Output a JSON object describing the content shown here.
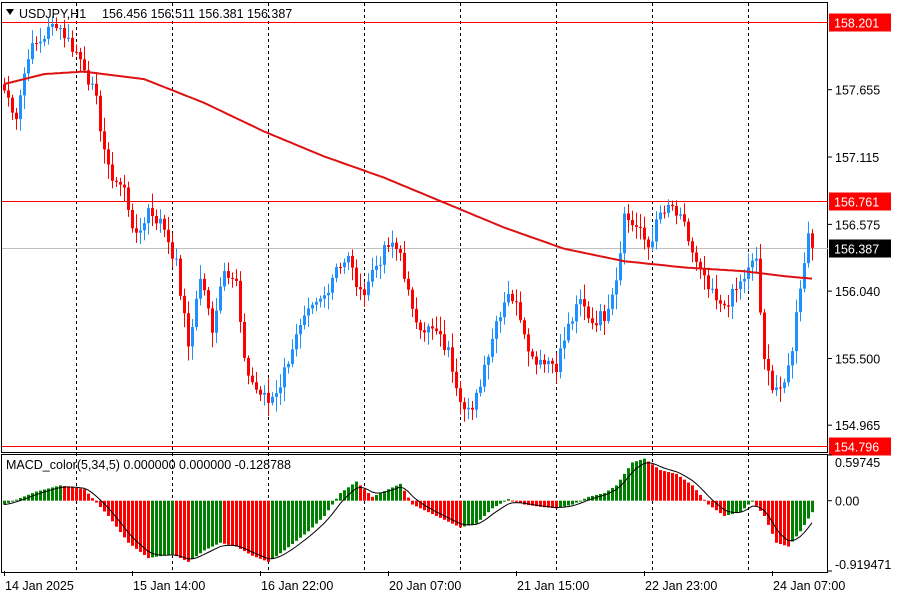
{
  "header": {
    "symbol_label": "USDJPY,H1",
    "ohlc_label": "156.456 156.511 156.381 156.387"
  },
  "macd_header": {
    "label": "MACD_color(5,34,5) 0.000000 0.000000 -0.128788"
  },
  "colors": {
    "bull": "#1e90ff",
    "bear": "#ff0000",
    "ma": "#dd1111",
    "level_line": "#ff0000",
    "current_line": "#c0c0c0",
    "hist_pos_up": "#008000",
    "hist_pos_down": "#ff0000",
    "macd_signal": "#000000"
  },
  "chart_data": [
    {
      "type": "candlestick",
      "symbol": "USDJPY",
      "timeframe": "H1",
      "ylim": [
        154.75,
        158.35
      ],
      "y_ticks": [
        "157.655",
        "157.115",
        "156.575",
        "156.040",
        "155.500",
        "154.965"
      ],
      "levels": [
        {
          "label": "158.201",
          "value": 158.201
        },
        {
          "label": "156.761",
          "value": 156.761
        },
        {
          "label": "154.796",
          "value": 154.796
        }
      ],
      "current_price": {
        "label": "156.387",
        "value": 156.387
      },
      "x_labels": [
        "14 Jan 2025",
        "15 Jan 14:00",
        "16 Jan 22:00",
        "20 Jan 07:00",
        "21 Jan 15:00",
        "22 Jan 23:00",
        "24 Jan 07:00"
      ],
      "x_label_candle_index": [
        0,
        32,
        64,
        96,
        128,
        160,
        192
      ],
      "session_separator_candle_index": [
        18,
        42,
        66,
        90,
        114,
        138,
        162,
        186
      ],
      "close_anchors": [
        [
          0,
          157.65
        ],
        [
          3,
          157.45
        ],
        [
          6,
          157.95
        ],
        [
          9,
          158.05
        ],
        [
          13,
          158.2
        ],
        [
          17,
          158.0
        ],
        [
          20,
          157.85
        ],
        [
          23,
          157.55
        ],
        [
          26,
          157.0
        ],
        [
          30,
          156.85
        ],
        [
          33,
          156.45
        ],
        [
          36,
          156.7
        ],
        [
          40,
          156.55
        ],
        [
          43,
          156.25
        ],
        [
          46,
          155.6
        ],
        [
          49,
          156.15
        ],
        [
          52,
          155.75
        ],
        [
          55,
          156.25
        ],
        [
          58,
          156.1
        ],
        [
          60,
          155.45
        ],
        [
          63,
          155.25
        ],
        [
          66,
          155.15
        ],
        [
          69,
          155.3
        ],
        [
          72,
          155.6
        ],
        [
          76,
          155.85
        ],
        [
          80,
          156.0
        ],
        [
          83,
          156.25
        ],
        [
          86,
          156.3
        ],
        [
          89,
          156.0
        ],
        [
          92,
          156.2
        ],
        [
          96,
          156.4
        ],
        [
          99,
          156.35
        ],
        [
          102,
          155.85
        ],
        [
          105,
          155.75
        ],
        [
          108,
          155.7
        ],
        [
          111,
          155.55
        ],
        [
          114,
          155.2
        ],
        [
          117,
          155.05
        ],
        [
          120,
          155.45
        ],
        [
          123,
          155.8
        ],
        [
          126,
          156.05
        ],
        [
          129,
          155.85
        ],
        [
          132,
          155.5
        ],
        [
          135,
          155.5
        ],
        [
          138,
          155.45
        ],
        [
          141,
          155.75
        ],
        [
          144,
          155.95
        ],
        [
          147,
          155.8
        ],
        [
          150,
          155.85
        ],
        [
          153,
          156.15
        ],
        [
          155,
          156.65
        ],
        [
          158,
          156.55
        ],
        [
          161,
          156.4
        ],
        [
          164,
          156.65
        ],
        [
          167,
          156.7
        ],
        [
          170,
          156.55
        ],
        [
          173,
          156.25
        ],
        [
          176,
          156.05
        ],
        [
          179,
          155.9
        ],
        [
          182,
          156.0
        ],
        [
          185,
          156.15
        ],
        [
          188,
          156.3
        ],
        [
          190,
          155.45
        ],
        [
          192,
          155.3
        ],
        [
          195,
          155.25
        ],
        [
          197,
          155.6
        ],
        [
          199,
          156.1
        ],
        [
          201,
          156.5
        ],
        [
          202,
          156.387
        ]
      ],
      "moving_average_anchors": [
        [
          0,
          157.7
        ],
        [
          10,
          157.78
        ],
        [
          20,
          157.8
        ],
        [
          35,
          157.74
        ],
        [
          50,
          157.55
        ],
        [
          65,
          157.32
        ],
        [
          80,
          157.12
        ],
        [
          95,
          156.95
        ],
        [
          110,
          156.75
        ],
        [
          125,
          156.55
        ],
        [
          140,
          156.38
        ],
        [
          155,
          156.28
        ],
        [
          170,
          156.23
        ],
        [
          185,
          156.2
        ],
        [
          195,
          156.16
        ],
        [
          202,
          156.14
        ]
      ]
    },
    {
      "type": "bar",
      "name": "MACD_color(5,34,5)",
      "ylim": [
        -0.919471,
        0.59745
      ],
      "y_ticks": [
        "0.59745",
        "0.00",
        "-0.919471"
      ],
      "anchors": [
        [
          0,
          -0.05
        ],
        [
          8,
          0.12
        ],
        [
          14,
          0.2
        ],
        [
          20,
          0.15
        ],
        [
          26,
          -0.2
        ],
        [
          31,
          -0.55
        ],
        [
          36,
          -0.75
        ],
        [
          42,
          -0.7
        ],
        [
          46,
          -0.8
        ],
        [
          50,
          -0.65
        ],
        [
          54,
          -0.55
        ],
        [
          58,
          -0.6
        ],
        [
          62,
          -0.72
        ],
        [
          66,
          -0.8
        ],
        [
          70,
          -0.65
        ],
        [
          76,
          -0.4
        ],
        [
          80,
          -0.2
        ],
        [
          84,
          0.1
        ],
        [
          88,
          0.25
        ],
        [
          92,
          0.05
        ],
        [
          96,
          0.15
        ],
        [
          99,
          0.22
        ],
        [
          102,
          -0.05
        ],
        [
          106,
          -0.15
        ],
        [
          110,
          -0.25
        ],
        [
          114,
          -0.35
        ],
        [
          118,
          -0.3
        ],
        [
          122,
          -0.1
        ],
        [
          126,
          0.02
        ],
        [
          130,
          -0.05
        ],
        [
          134,
          -0.08
        ],
        [
          138,
          -0.1
        ],
        [
          142,
          -0.05
        ],
        [
          146,
          0.05
        ],
        [
          150,
          0.1
        ],
        [
          153,
          0.2
        ],
        [
          157,
          0.5
        ],
        [
          160,
          0.55
        ],
        [
          164,
          0.4
        ],
        [
          168,
          0.35
        ],
        [
          172,
          0.2
        ],
        [
          176,
          -0.05
        ],
        [
          180,
          -0.2
        ],
        [
          184,
          -0.15
        ],
        [
          187,
          0.0
        ],
        [
          190,
          -0.2
        ],
        [
          193,
          -0.55
        ],
        [
          196,
          -0.6
        ],
        [
          199,
          -0.4
        ],
        [
          202,
          -0.15
        ]
      ]
    }
  ]
}
